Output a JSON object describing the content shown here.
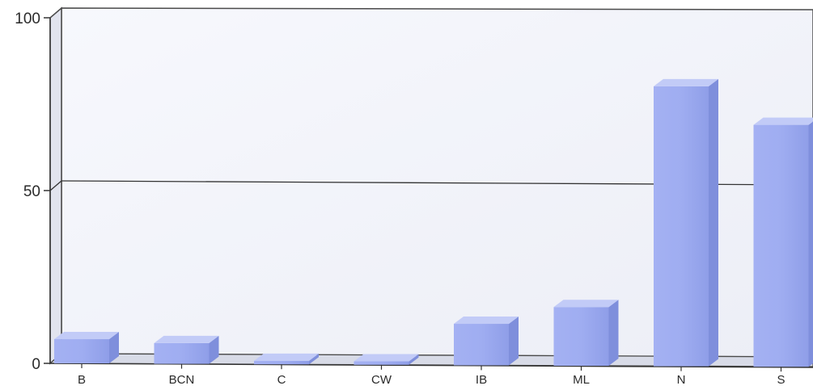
{
  "chart_data": {
    "type": "bar",
    "title": "",
    "xlabel": "",
    "ylabel": "",
    "categories": [
      "B",
      "BCN",
      "C",
      "CW",
      "IB",
      "ML",
      "N",
      "S"
    ],
    "values": [
      7,
      6,
      1,
      1,
      12,
      17,
      81,
      70
    ],
    "ylim": [
      0,
      100
    ],
    "yticks": [
      "0",
      "50",
      "100"
    ],
    "grid": true,
    "legend": "none",
    "bar_color": "#9aa8ef"
  }
}
